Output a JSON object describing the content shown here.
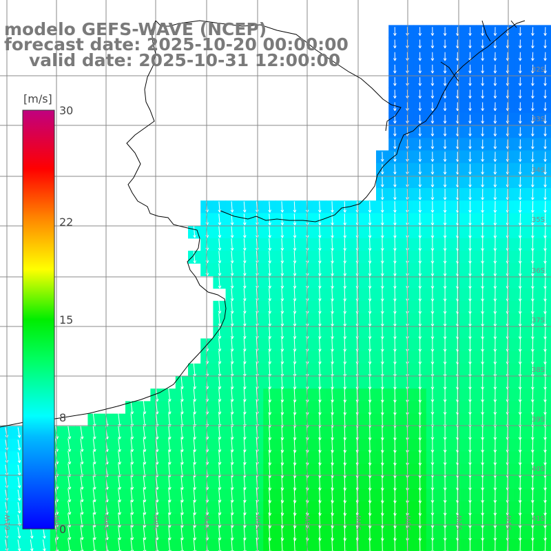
{
  "title": {
    "model": "modelo GEFS-WAVE (NCEP)",
    "forecast_date": "forecast date: 2025-10-20 00:00:00",
    "valid_date": "valid date: 2025-10-31 12:00:00"
  },
  "colorbar": {
    "unit": "[m/s]",
    "ticks": [
      {
        "value": 30,
        "label": "30"
      },
      {
        "value": 22,
        "label": "22"
      },
      {
        "value": 15,
        "label": "15"
      },
      {
        "value": 8,
        "label": "8"
      },
      {
        "value": 0,
        "label": "0"
      }
    ],
    "min": 0,
    "max": 30,
    "colors": [
      "#0000ff",
      "#0088ff",
      "#00ddff",
      "#00ff88",
      "#00ff00",
      "#ffff00",
      "#ff8800",
      "#ff0000",
      "#bb0088"
    ]
  },
  "grid": {
    "lat_labels": [
      "32S",
      "33S",
      "34S",
      "35S",
      "36S",
      "37S",
      "38S",
      "39S",
      "40S",
      "41S"
    ],
    "lon_labels": [
      "61W",
      "60W",
      "59W",
      "58W",
      "57W",
      "56W",
      "55W",
      "54W",
      "53W",
      "52W",
      "51W"
    ]
  },
  "map": {
    "variable": "wind speed and direction",
    "units": "m/s",
    "land_color": "#ffffff",
    "coastline_color": "#000000",
    "arrow_color": "#ffffff",
    "grid_color": "#888888",
    "prevailing_direction": "from north-northwest"
  }
}
